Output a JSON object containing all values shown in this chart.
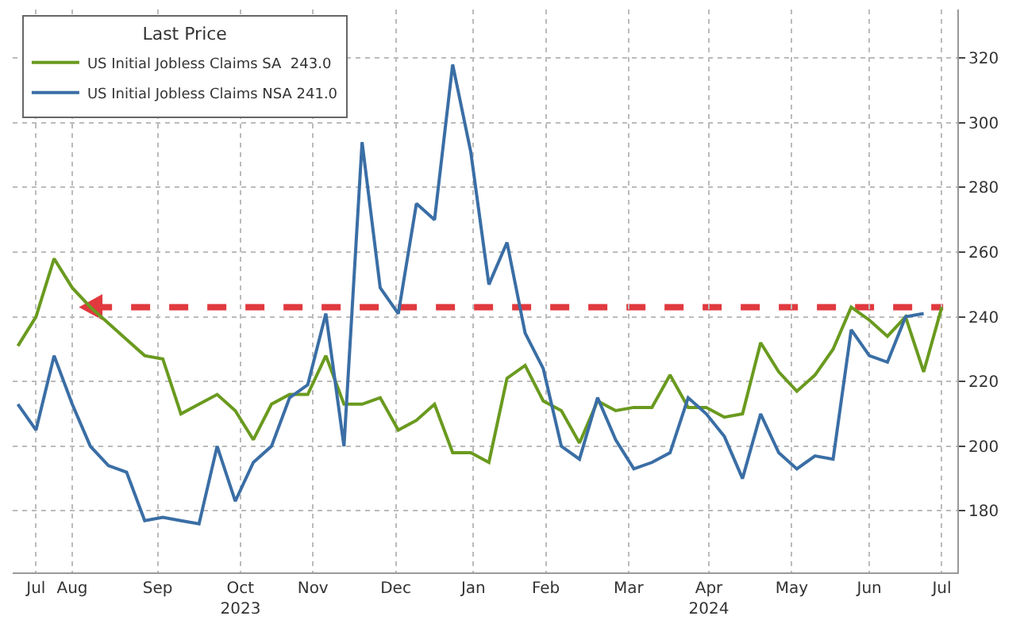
{
  "chart_data": {
    "type": "line",
    "legend_title": "Last Price",
    "legend": "top left",
    "grid": true,
    "marker": "none",
    "line_style": "solid",
    "x": [
      "2023-07-22",
      "2023-07-29",
      "2023-08-05",
      "2023-08-12",
      "2023-08-19",
      "2023-08-26",
      "2023-09-02",
      "2023-09-09",
      "2023-09-16",
      "2023-09-23",
      "2023-09-30",
      "2023-10-07",
      "2023-10-14",
      "2023-10-21",
      "2023-10-28",
      "2023-11-04",
      "2023-11-11",
      "2023-11-18",
      "2023-11-25",
      "2023-12-02",
      "2023-12-09",
      "2023-12-16",
      "2023-12-23",
      "2023-12-30",
      "2024-01-06",
      "2024-01-13",
      "2024-01-20",
      "2024-01-27",
      "2024-02-03",
      "2024-02-10",
      "2024-02-17",
      "2024-02-24",
      "2024-03-02",
      "2024-03-09",
      "2024-03-16",
      "2024-03-23",
      "2024-03-30",
      "2024-04-06",
      "2024-04-13",
      "2024-04-20",
      "2024-04-27",
      "2024-05-04",
      "2024-05-11",
      "2024-05-18",
      "2024-05-25",
      "2024-06-01",
      "2024-06-08",
      "2024-06-15",
      "2024-06-22",
      "2024-06-29",
      "2024-07-06",
      "2024-07-13"
    ],
    "series": [
      {
        "name": "US Initial Jobless Claims SA  243.0",
        "color": "#6a9a1f",
        "values": [
          231,
          240,
          258,
          249,
          243,
          238,
          233,
          228,
          227,
          210,
          213,
          216,
          211,
          202,
          213,
          216,
          216,
          228,
          213,
          213,
          215,
          205,
          208,
          213,
          198,
          198,
          195,
          221,
          225,
          214,
          211,
          201,
          214,
          211,
          212,
          212,
          222,
          212,
          212,
          209,
          210,
          232,
          223,
          217,
          222,
          230,
          243,
          239,
          234,
          240,
          223,
          243
        ]
      },
      {
        "name": "US Initial Jobless Claims NSA 241.0",
        "color": "#3a6ea5",
        "values": [
          213,
          205,
          228,
          213,
          200,
          194,
          192,
          177,
          178,
          177,
          176,
          200,
          183,
          195,
          200,
          215,
          219,
          241,
          200,
          294,
          249,
          241,
          275,
          270,
          318,
          291,
          250,
          263,
          235,
          224,
          200,
          196,
          215,
          202,
          193,
          195,
          198,
          215,
          210,
          203,
          190,
          210,
          198,
          193,
          197,
          196,
          236,
          228,
          226,
          240,
          241,
          null
        ]
      }
    ],
    "xlim": [
      "2023-07-20",
      "2024-07-19"
    ],
    "xticks": [
      {
        "value": "2023-07-29",
        "label": "Jul"
      },
      {
        "value": "2023-08-12",
        "label": "Aug"
      },
      {
        "value": "2023-09-14",
        "label": "Sep"
      },
      {
        "value": "2023-10-16",
        "label": "Oct\n2023"
      },
      {
        "value": "2023-11-13",
        "label": "Nov"
      },
      {
        "value": "2023-12-15",
        "label": "Dec"
      },
      {
        "value": "2024-01-14",
        "label": "Jan"
      },
      {
        "value": "2024-02-11",
        "label": "Feb"
      },
      {
        "value": "2024-03-14",
        "label": "Mar"
      },
      {
        "value": "2024-04-14",
        "label": "Apr\n2024"
      },
      {
        "value": "2024-05-16",
        "label": "May"
      },
      {
        "value": "2024-06-15",
        "label": "Jun"
      },
      {
        "value": "2024-07-13",
        "label": "Jul"
      }
    ],
    "ylim": [
      161,
      335
    ],
    "yticks": [
      180,
      200,
      220,
      240,
      260,
      280,
      300,
      320
    ],
    "ref_lines": [
      {
        "axis": "y",
        "value": 243,
        "color": "#e0393e",
        "line_style": "dashed"
      }
    ]
  }
}
